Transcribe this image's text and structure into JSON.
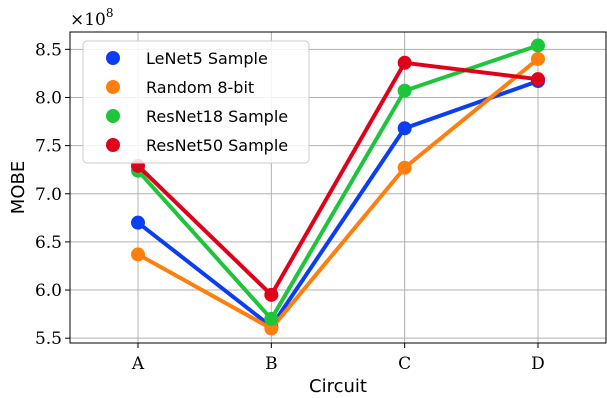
{
  "chart_data": {
    "type": "line",
    "categories": [
      "A",
      "B",
      "C",
      "D"
    ],
    "xlabel": "Circuit",
    "ylabel": "MOBE",
    "y_multiplier_label": "×10",
    "y_multiplier_exp": "8",
    "ylim": [
      5.45,
      8.68
    ],
    "yticks": [
      5.5,
      6.0,
      6.5,
      7.0,
      7.5,
      8.0,
      8.5
    ],
    "ytick_labels": [
      "5.5",
      "6.0",
      "6.5",
      "7.0",
      "7.5",
      "8.0",
      "8.5"
    ],
    "grid": true,
    "legend_position": "top-left",
    "series": [
      {
        "name": "LeNet5 Sample",
        "color": "#0b3ef2",
        "values": [
          6.7,
          5.62,
          7.68,
          8.17
        ]
      },
      {
        "name": "Random 8-bit",
        "color": "#ff7f0e",
        "values": [
          6.37,
          5.6,
          7.27,
          8.4
        ]
      },
      {
        "name": "ResNet18 Sample",
        "color": "#1ec43a",
        "values": [
          7.24,
          5.7,
          8.07,
          8.54
        ]
      },
      {
        "name": "ResNet50 Sample",
        "color": "#e0001a",
        "values": [
          7.29,
          5.95,
          8.36,
          8.19
        ]
      }
    ]
  }
}
